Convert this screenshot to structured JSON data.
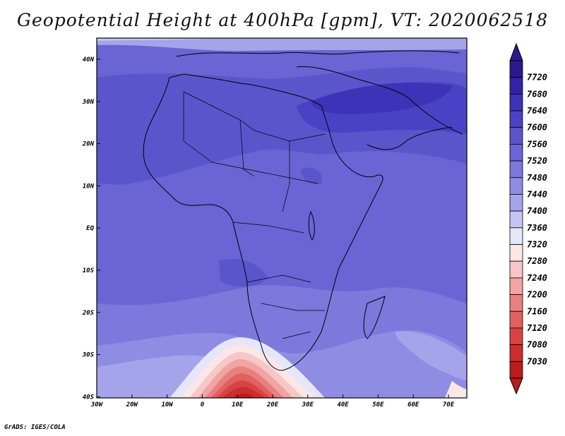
{
  "title": "Geopotential Height at 400hPa [gpm], VT: 2020062518",
  "footer": "GrADS: IGES/COLA",
  "map": {
    "region": "Africa",
    "lat_labels": [
      "40N",
      "30N",
      "20N",
      "10N",
      "EQ",
      "10S",
      "20S",
      "30S",
      "40S"
    ],
    "lon_labels": [
      "30W",
      "20W",
      "10W",
      "0",
      "10E",
      "20E",
      "30E",
      "40E",
      "50E",
      "60E",
      "70E"
    ]
  },
  "colorbar": {
    "labels": [
      "7720",
      "7680",
      "7640",
      "7600",
      "7560",
      "7520",
      "7480",
      "7440",
      "7400",
      "7360",
      "7320",
      "7280",
      "7240",
      "7200",
      "7160",
      "7120",
      "7080",
      "7030"
    ],
    "colors": [
      "#2a1a8c",
      "#3322a8",
      "#3d32b8",
      "#4a42c4",
      "#5b55cc",
      "#6a64d4",
      "#7c78dc",
      "#8f8ce4",
      "#a5a3ea",
      "#c5c4f2",
      "#e6e6fa",
      "#fde6e6",
      "#f7c6c6",
      "#f1a4a4",
      "#e98080",
      "#e16060",
      "#d84444",
      "#cc2e2e",
      "#b81c1c"
    ]
  }
}
